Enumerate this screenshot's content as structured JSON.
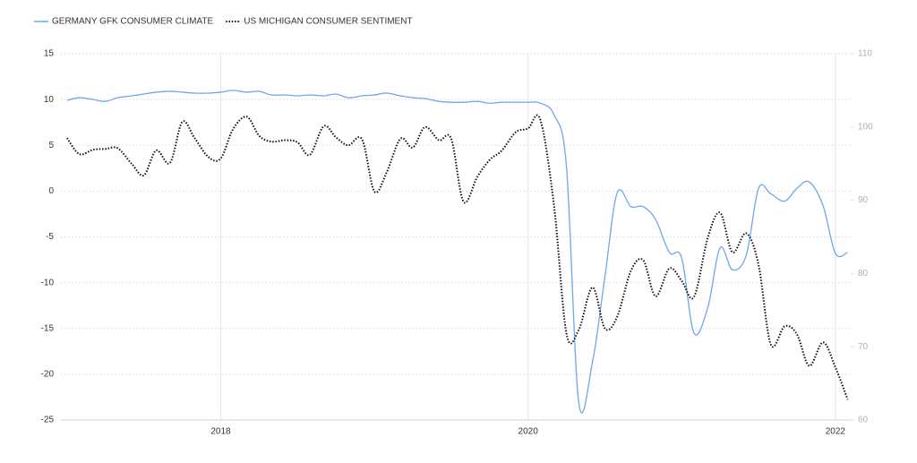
{
  "chart_data": {
    "type": "line",
    "x": [
      2017,
      2017.08,
      2017.17,
      2017.25,
      2017.33,
      2017.42,
      2017.5,
      2017.58,
      2017.67,
      2017.75,
      2017.83,
      2017.92,
      2018,
      2018.08,
      2018.17,
      2018.25,
      2018.33,
      2018.42,
      2018.5,
      2018.58,
      2018.67,
      2018.75,
      2018.83,
      2018.92,
      2019,
      2019.08,
      2019.17,
      2019.25,
      2019.33,
      2019.42,
      2019.5,
      2019.58,
      2019.67,
      2019.75,
      2019.83,
      2019.92,
      2020,
      2020.08,
      2020.17,
      2020.25,
      2020.33,
      2020.42,
      2020.5,
      2020.58,
      2020.67,
      2020.75,
      2020.83,
      2020.92,
      2021,
      2021.08,
      2021.17,
      2021.25,
      2021.33,
      2021.42,
      2021.5,
      2021.58,
      2021.67,
      2021.75,
      2021.83,
      2021.92,
      2022,
      2022.08
    ],
    "series": [
      {
        "name": "GERMANY GFK CONSUMER CLIMATE",
        "color": "#6ea8e8",
        "axis": "y",
        "dash": false,
        "values": [
          9.9,
          10.2,
          10.0,
          9.8,
          10.2,
          10.4,
          10.6,
          10.8,
          10.9,
          10.8,
          10.7,
          10.7,
          10.8,
          11.0,
          10.8,
          10.9,
          10.5,
          10.5,
          10.4,
          10.5,
          10.4,
          10.6,
          10.2,
          10.4,
          10.5,
          10.7,
          10.4,
          10.2,
          10.1,
          9.8,
          9.7,
          9.7,
          9.8,
          9.6,
          9.7,
          9.7,
          9.7,
          9.6,
          8.3,
          2.7,
          -23.1,
          -18.6,
          -9.4,
          -0.2,
          -1.7,
          -1.7,
          -3.1,
          -6.7,
          -7.3,
          -15.5,
          -12.7,
          -6.2,
          -8.6,
          -7.0,
          0.3,
          -0.3,
          -1.1,
          0.3,
          1.0,
          -1.6,
          -6.8,
          -6.7
        ]
      },
      {
        "name": "US MICHIGAN CONSUMER SENTIMENT",
        "color": "#111111",
        "axis": "y2",
        "dash": true,
        "values": [
          98.5,
          96.3,
          96.9,
          97.0,
          97.1,
          95.0,
          93.4,
          96.8,
          95.1,
          100.7,
          98.5,
          95.9,
          95.7,
          99.7,
          101.4,
          98.8,
          98.0,
          98.2,
          97.9,
          96.2,
          100.1,
          98.6,
          97.5,
          98.3,
          91.2,
          93.8,
          98.4,
          97.2,
          100.0,
          98.2,
          98.4,
          89.8,
          93.2,
          95.5,
          96.8,
          99.3,
          99.8,
          101.0,
          89.1,
          71.8,
          72.3,
          78.1,
          72.5,
          74.1,
          80.4,
          81.8,
          76.9,
          80.7,
          79.0,
          76.8,
          84.9,
          88.3,
          82.9,
          85.5,
          81.2,
          70.3,
          72.8,
          71.7,
          67.4,
          70.6,
          67.2,
          62.8
        ]
      }
    ],
    "xlim": [
      2016.96,
      2022.1
    ],
    "xticks": [
      2018,
      2020,
      2022
    ],
    "ylim": [
      -25,
      15
    ],
    "yticks": [
      -25,
      -20,
      -15,
      -10,
      -5,
      0,
      5,
      10,
      15
    ],
    "y2lim": [
      60,
      110
    ],
    "y2ticks": [
      60,
      70,
      80,
      90,
      100,
      110
    ],
    "grid": true
  }
}
